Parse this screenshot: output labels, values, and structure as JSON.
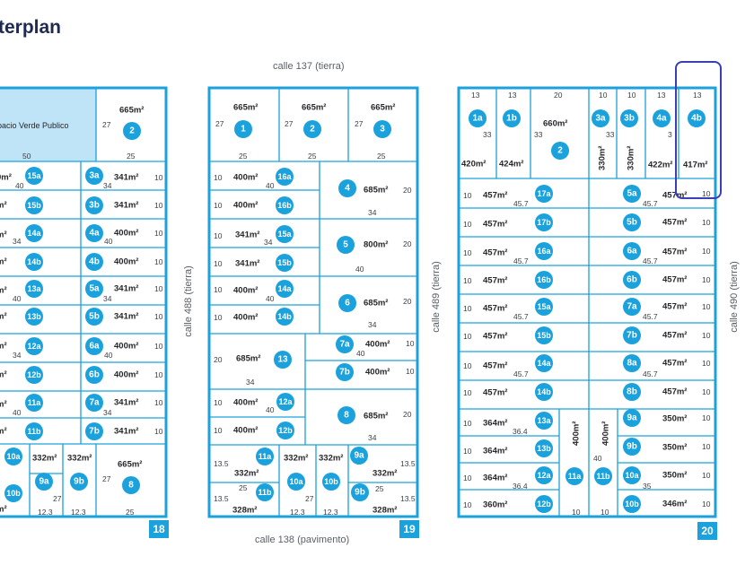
{
  "title": "terplan",
  "streets": {
    "top": "calle 137 (tierra)",
    "bottom": "calle 138 (pavimento)",
    "left_488": "calle 488 (tierra)",
    "mid_489": "calle 489 (tierra)",
    "right_490": "calle 490 (tierra)"
  },
  "colors": {
    "accent": "#1ba2dc",
    "green_space": "#bfe3f7",
    "highlight": "#3a3fb8",
    "text": "#26262b"
  },
  "blocks": [
    {
      "number": "18",
      "green_space_label": "pacio Verde Publico",
      "green_space_dim": "50",
      "lots": [
        {
          "id": "2",
          "area": "665m²",
          "dims": [
            "27",
            "25"
          ]
        },
        {
          "id": "15a",
          "area": "0m²",
          "dims": [
            "40"
          ]
        },
        {
          "id": "15b",
          "area": "m²",
          "dims": []
        },
        {
          "id": "14a",
          "area": "m²",
          "dims": [
            "34"
          ]
        },
        {
          "id": "14b",
          "area": "m²",
          "dims": []
        },
        {
          "id": "13a",
          "area": "m²",
          "dims": [
            "40"
          ]
        },
        {
          "id": "13b",
          "area": "m²",
          "dims": []
        },
        {
          "id": "12a",
          "area": "m²",
          "dims": [
            "34"
          ]
        },
        {
          "id": "12b",
          "area": "m²",
          "dims": []
        },
        {
          "id": "11a",
          "area": "m²",
          "dims": [
            "40"
          ]
        },
        {
          "id": "11b",
          "area": "m²",
          "dims": []
        },
        {
          "id": "3a",
          "area": "341m²",
          "dims": [
            "34",
            "10"
          ]
        },
        {
          "id": "3b",
          "area": "341m²",
          "dims": [
            "10"
          ]
        },
        {
          "id": "4a",
          "area": "400m²",
          "dims": [
            "40",
            "10"
          ]
        },
        {
          "id": "4b",
          "area": "400m²",
          "dims": [
            "10"
          ]
        },
        {
          "id": "5a",
          "area": "341m²",
          "dims": [
            "34",
            "10"
          ]
        },
        {
          "id": "5b",
          "area": "341m²",
          "dims": [
            "10"
          ]
        },
        {
          "id": "6a",
          "area": "400m²",
          "dims": [
            "40",
            "10"
          ]
        },
        {
          "id": "6b",
          "area": "400m²",
          "dims": [
            "10"
          ]
        },
        {
          "id": "7a",
          "area": "341m²",
          "dims": [
            "34",
            "10"
          ]
        },
        {
          "id": "7b",
          "area": "341m²",
          "dims": [
            "10"
          ]
        },
        {
          "id": "10a",
          "area": "",
          "dims": []
        },
        {
          "id": "10b",
          "area": "m²",
          "dims": []
        },
        {
          "id": "9a",
          "area": "332m²",
          "dims": [
            "27",
            "12.3"
          ]
        },
        {
          "id": "9b",
          "area": "332m²",
          "dims": [
            "12.3"
          ]
        },
        {
          "id": "8",
          "area": "665m²",
          "dims": [
            "27",
            "25"
          ]
        }
      ]
    },
    {
      "number": "19",
      "lots": [
        {
          "id": "1",
          "area": "665m²",
          "dims": [
            "27",
            "25"
          ]
        },
        {
          "id": "2",
          "area": "665m²",
          "dims": [
            "27",
            "25"
          ]
        },
        {
          "id": "3",
          "area": "665m²",
          "dims": [
            "27",
            "25"
          ]
        },
        {
          "id": "16a",
          "area": "400m²",
          "dims": [
            "10",
            "40"
          ]
        },
        {
          "id": "16b",
          "area": "400m²",
          "dims": [
            "10"
          ]
        },
        {
          "id": "15a",
          "area": "341m²",
          "dims": [
            "10",
            "34"
          ]
        },
        {
          "id": "15b",
          "area": "341m²",
          "dims": [
            "10"
          ]
        },
        {
          "id": "14a",
          "area": "400m²",
          "dims": [
            "10",
            "40"
          ]
        },
        {
          "id": "14b",
          "area": "400m²",
          "dims": [
            "10"
          ]
        },
        {
          "id": "13",
          "area": "685m²",
          "dims": [
            "20",
            "34"
          ]
        },
        {
          "id": "12a",
          "area": "400m²",
          "dims": [
            "10",
            "40"
          ]
        },
        {
          "id": "12b",
          "area": "400m²",
          "dims": [
            "10"
          ]
        },
        {
          "id": "4",
          "area": "685m²",
          "dims": [
            "20",
            "34"
          ]
        },
        {
          "id": "5",
          "area": "800m²",
          "dims": [
            "20",
            "40"
          ]
        },
        {
          "id": "6",
          "area": "685m²",
          "dims": [
            "20",
            "34"
          ]
        },
        {
          "id": "7a",
          "area": "400m²",
          "dims": [
            "10",
            "40"
          ]
        },
        {
          "id": "7b",
          "area": "400m²",
          "dims": [
            "10"
          ]
        },
        {
          "id": "8",
          "area": "685m²",
          "dims": [
            "20",
            "34"
          ]
        },
        {
          "id": "11a",
          "area": "332m²",
          "dims": [
            "13.5",
            "25"
          ]
        },
        {
          "id": "11b",
          "area": "328m²",
          "dims": [
            "13.5"
          ]
        },
        {
          "id": "10a",
          "area": "332m²",
          "dims": [
            "27",
            "12.3"
          ]
        },
        {
          "id": "10b",
          "area": "332m²",
          "dims": [
            "12.3"
          ]
        },
        {
          "id": "9a",
          "area": "332m²",
          "dims": [
            "13.5",
            "25"
          ]
        },
        {
          "id": "9b",
          "area": "328m²",
          "dims": [
            "13.5"
          ]
        }
      ]
    },
    {
      "number": "20",
      "top_dims": [
        "13",
        "13",
        "20",
        "10",
        "10",
        "13",
        "13"
      ],
      "lots": [
        {
          "id": "1a",
          "area": "420m²",
          "dims": [
            "33"
          ]
        },
        {
          "id": "1b",
          "area": "424m²",
          "dims": []
        },
        {
          "id": "2",
          "area": "660m²",
          "dims": [
            "33"
          ]
        },
        {
          "id": "3a",
          "area": "330m²",
          "dims": [
            "33"
          ]
        },
        {
          "id": "3b",
          "area": "330m²",
          "dims": []
        },
        {
          "id": "4a",
          "area": "422m²",
          "dims": [
            "3"
          ]
        },
        {
          "id": "4b",
          "area": "417m²",
          "dims": []
        },
        {
          "id": "17a",
          "area": "457m²",
          "dims": [
            "10",
            "45.7"
          ]
        },
        {
          "id": "17b",
          "area": "457m²",
          "dims": [
            "10"
          ]
        },
        {
          "id": "16a",
          "area": "457m²",
          "dims": [
            "10",
            "45.7"
          ]
        },
        {
          "id": "16b",
          "area": "457m²",
          "dims": [
            "10"
          ]
        },
        {
          "id": "15a",
          "area": "457m²",
          "dims": [
            "10",
            "45.7"
          ]
        },
        {
          "id": "15b",
          "area": "457m²",
          "dims": [
            "10"
          ]
        },
        {
          "id": "14a",
          "area": "457m²",
          "dims": [
            "10",
            "45.7"
          ]
        },
        {
          "id": "14b",
          "area": "457m²",
          "dims": [
            "10"
          ]
        },
        {
          "id": "5a",
          "area": "457m²",
          "dims": [
            "45.7",
            "10"
          ]
        },
        {
          "id": "5b",
          "area": "457m²",
          "dims": [
            "10"
          ]
        },
        {
          "id": "6a",
          "area": "457m²",
          "dims": [
            "45.7",
            "10"
          ]
        },
        {
          "id": "6b",
          "area": "457m²",
          "dims": [
            "10"
          ]
        },
        {
          "id": "7a",
          "area": "457m²",
          "dims": [
            "45.7",
            "10"
          ]
        },
        {
          "id": "7b",
          "area": "457m²",
          "dims": [
            "10"
          ]
        },
        {
          "id": "8a",
          "area": "457m²",
          "dims": [
            "45.7",
            "10"
          ]
        },
        {
          "id": "8b",
          "area": "457m²",
          "dims": [
            "10"
          ]
        },
        {
          "id": "13a",
          "area": "364m²",
          "dims": [
            "10",
            "36.4"
          ]
        },
        {
          "id": "13b",
          "area": "364m²",
          "dims": [
            "10"
          ]
        },
        {
          "id": "12a",
          "area": "364m²",
          "dims": [
            "10",
            "36.4"
          ]
        },
        {
          "id": "12b",
          "area": "360m²",
          "dims": [
            "10"
          ]
        },
        {
          "id": "11a",
          "area": "400m²",
          "dims": [
            "10"
          ]
        },
        {
          "id": "11b",
          "area": "400m²",
          "dims": [
            "40",
            "10"
          ]
        },
        {
          "id": "9a",
          "area": "350m²",
          "dims": [
            "10"
          ]
        },
        {
          "id": "9b",
          "area": "350m²",
          "dims": [
            "10"
          ]
        },
        {
          "id": "10a",
          "area": "350m²",
          "dims": [
            "35",
            "10"
          ]
        },
        {
          "id": "10b",
          "area": "346m²",
          "dims": [
            "10"
          ]
        }
      ],
      "highlighted_lot": "4b"
    }
  ]
}
